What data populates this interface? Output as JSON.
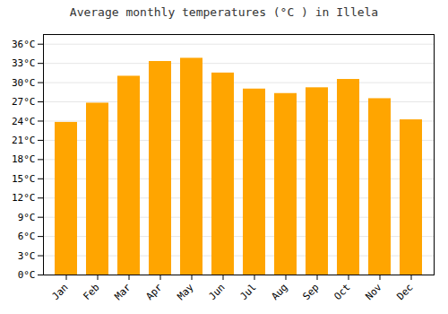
{
  "chart_data": {
    "type": "bar",
    "title": "Average monthly temperatures (°C ) in Illela",
    "categories": [
      "Jan",
      "Feb",
      "Mar",
      "Apr",
      "May",
      "Jun",
      "Jul",
      "Aug",
      "Sep",
      "Oct",
      "Nov",
      "Dec"
    ],
    "values": [
      23.8,
      26.8,
      31.0,
      33.3,
      33.8,
      31.5,
      29.0,
      28.3,
      29.2,
      30.5,
      27.5,
      24.2
    ],
    "color": "#FFA500",
    "ylim": [
      0,
      37.5
    ],
    "yticks": [
      {
        "value": 0,
        "label": "0°C"
      },
      {
        "value": 3,
        "label": "3°C"
      },
      {
        "value": 6,
        "label": "6°C"
      },
      {
        "value": 9,
        "label": "9°C"
      },
      {
        "value": 12,
        "label": "12°C"
      },
      {
        "value": 15,
        "label": "15°C"
      },
      {
        "value": 18,
        "label": "18°C"
      },
      {
        "value": 21,
        "label": "21°C"
      },
      {
        "value": 24,
        "label": "24°C"
      },
      {
        "value": 27,
        "label": "27°C"
      },
      {
        "value": 30,
        "label": "30°C"
      },
      {
        "value": 33,
        "label": "33°C"
      },
      {
        "value": 36,
        "label": "36°C"
      }
    ],
    "grid": true
  }
}
